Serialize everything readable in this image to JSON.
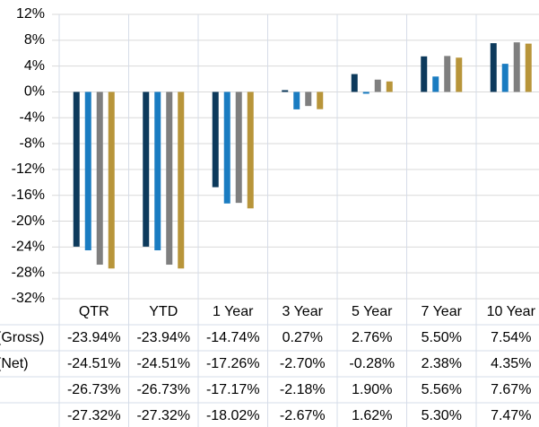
{
  "chart_data": {
    "type": "bar",
    "categories": [
      "QTR",
      "YTD",
      "1 Year",
      "3 Year",
      "5 Year",
      "7 Year",
      "10 Year"
    ],
    "series": [
      {
        "name": "(Gross)",
        "color": "#0d3a5c",
        "values": [
          -23.94,
          -23.94,
          -14.74,
          0.27,
          2.76,
          5.5,
          7.54
        ],
        "value_labels": [
          "-23.94%",
          "-23.94%",
          "-14.74%",
          "0.27%",
          "2.76%",
          "5.50%",
          "7.54%"
        ]
      },
      {
        "name": "(Net)",
        "color": "#1a7cc1",
        "values": [
          -24.51,
          -24.51,
          -17.26,
          -2.7,
          -0.28,
          2.38,
          4.35
        ],
        "value_labels": [
          "-24.51%",
          "-24.51%",
          "-17.26%",
          "-2.70%",
          "-0.28%",
          "2.38%",
          "4.35%"
        ]
      },
      {
        "name": null,
        "color": "#7f7f7f",
        "values": [
          -26.73,
          -26.73,
          -17.17,
          -2.18,
          1.9,
          5.56,
          7.67
        ],
        "value_labels": [
          "-26.73%",
          "-26.73%",
          "-17.17%",
          "-2.18%",
          "1.90%",
          "5.56%",
          "7.67%"
        ]
      },
      {
        "name": null,
        "color": "#b8953a",
        "values": [
          -27.32,
          -27.32,
          -18.02,
          -2.67,
          1.62,
          5.3,
          7.47
        ],
        "value_labels": [
          "-27.32%",
          "-27.32%",
          "-18.02%",
          "-2.67%",
          "1.62%",
          "5.30%",
          "7.47%"
        ]
      }
    ],
    "ylim": [
      -32,
      12
    ],
    "yticks": [
      {
        "value": -32,
        "label": "-32%"
      },
      {
        "value": -28,
        "label": "-28%"
      },
      {
        "value": -24,
        "label": "-24%"
      },
      {
        "value": -20,
        "label": "-20%"
      },
      {
        "value": -16,
        "label": "-16%"
      },
      {
        "value": -12,
        "label": "-12%"
      },
      {
        "value": -8,
        "label": "-8%"
      },
      {
        "value": -4,
        "label": "-4%"
      },
      {
        "value": 0,
        "label": "0%"
      },
      {
        "value": 4,
        "label": "4%"
      },
      {
        "value": 8,
        "label": "8%"
      },
      {
        "value": 12,
        "label": "12%"
      }
    ],
    "grid": true
  }
}
